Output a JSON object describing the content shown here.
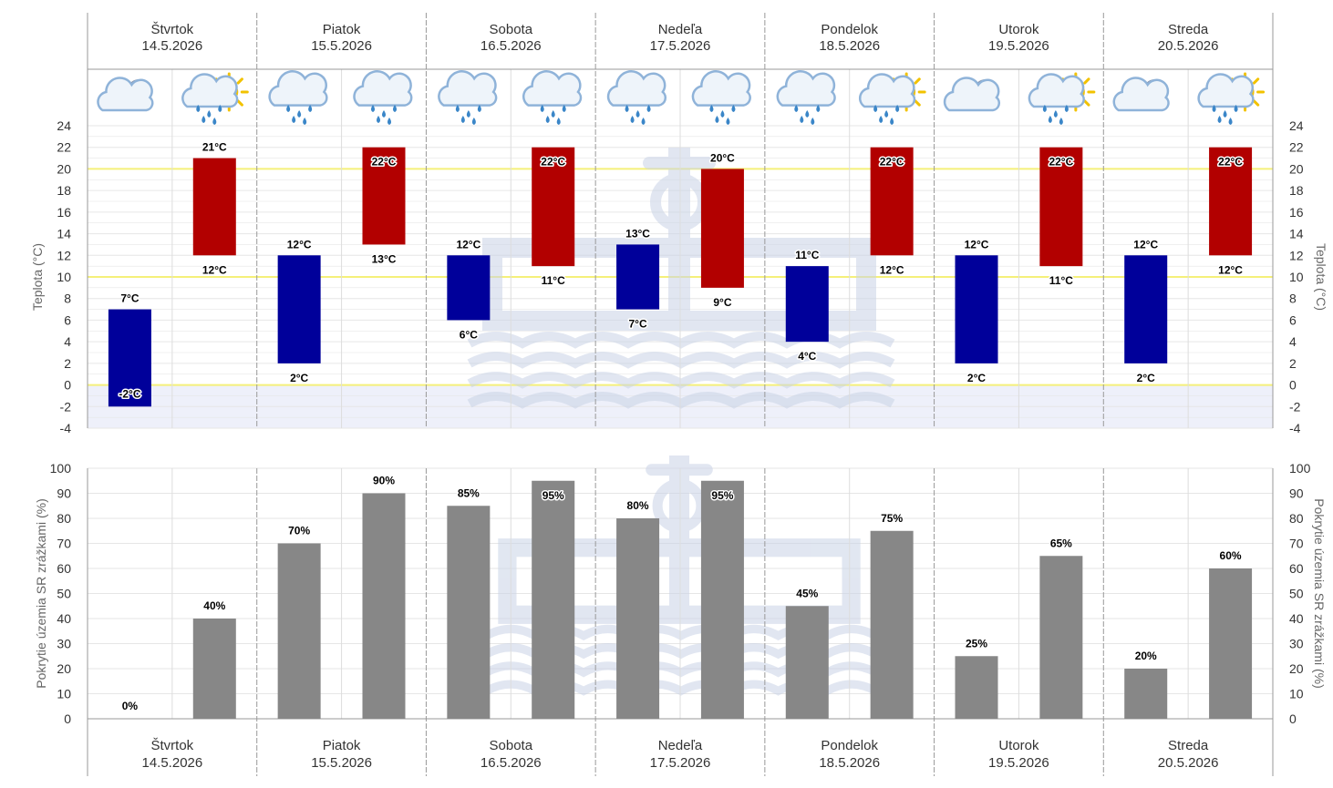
{
  "days": [
    {
      "name": "Štvrtok",
      "date": "14.5.2026",
      "icons": [
        "cloud-moon-icon",
        "sun-cloud-rain-icon"
      ]
    },
    {
      "name": "Piatok",
      "date": "15.5.2026",
      "icons": [
        "cloud-rain-icon",
        "cloud-rain-icon"
      ]
    },
    {
      "name": "Sobota",
      "date": "16.5.2026",
      "icons": [
        "cloud-rain-icon",
        "cloud-rain-icon"
      ]
    },
    {
      "name": "Nedeľa",
      "date": "17.5.2026",
      "icons": [
        "cloud-rain-icon",
        "cloud-rain-icon"
      ]
    },
    {
      "name": "Pondelok",
      "date": "18.5.2026",
      "icons": [
        "cloud-rain-icon",
        "sun-cloud-rain-icon"
      ]
    },
    {
      "name": "Utorok",
      "date": "19.5.2026",
      "icons": [
        "cloud-moon-icon",
        "sun-cloud-rain-icon"
      ]
    },
    {
      "name": "Streda",
      "date": "20.5.2026",
      "icons": [
        "cloud-moon-icon",
        "sun-cloud-rain-icon"
      ]
    }
  ],
  "colors": {
    "night_bar": "#00009a",
    "day_bar": "#b20000",
    "precip_bar": "#878787",
    "highlight_line": "#f5f07a",
    "below_zero_band": "#eef0fa",
    "grid": "#e6e6e6",
    "divider": "#999999",
    "watermark": "#c9d3e6"
  },
  "chart_data": [
    {
      "type": "bar",
      "subtype": "floating-range",
      "ylabel": "Teplota (°C)",
      "ylim": [
        -4,
        24
      ],
      "yticks": [
        -4,
        -2,
        0,
        2,
        4,
        6,
        8,
        10,
        12,
        14,
        16,
        18,
        20,
        22,
        24
      ],
      "highlight_lines": [
        0,
        10,
        20
      ],
      "below_zero_shaded": true,
      "grid": true,
      "series": [
        {
          "periods": "night",
          "min": [
            -2,
            2,
            6,
            7,
            4,
            2,
            2
          ],
          "max": [
            7,
            12,
            12,
            13,
            11,
            12,
            12
          ]
        },
        {
          "periods": "day",
          "min": [
            12,
            13,
            11,
            9,
            12,
            11,
            12
          ],
          "max": [
            21,
            22,
            22,
            20,
            22,
            22,
            22
          ]
        }
      ],
      "unit": "°C"
    },
    {
      "type": "bar",
      "ylabel": "Pokrytie územia SR zrážkami (%)",
      "ylim": [
        0,
        100
      ],
      "yticks": [
        0,
        10,
        20,
        30,
        40,
        50,
        60,
        70,
        80,
        90,
        100
      ],
      "grid": true,
      "series": [
        {
          "periods": "night",
          "values": [
            0,
            70,
            85,
            80,
            45,
            25,
            20
          ]
        },
        {
          "periods": "day",
          "values": [
            40,
            90,
            95,
            95,
            75,
            65,
            60
          ]
        }
      ],
      "unit": "%"
    }
  ]
}
